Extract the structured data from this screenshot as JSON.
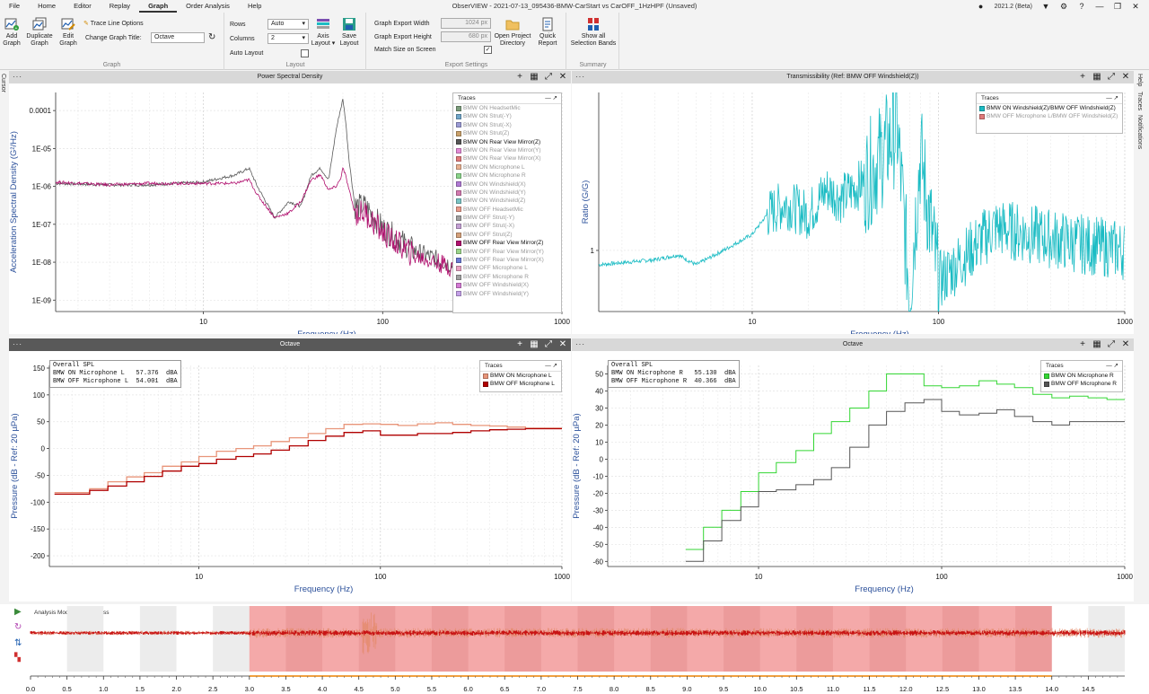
{
  "window": {
    "title": "ObserVIEW - 2021-07-13_095436-BMW-CarStart vs CarOFF_1HzHPF (Unsaved)",
    "version": "2021.2 (Beta)"
  },
  "menu": [
    "File",
    "Home",
    "Editor",
    "Replay",
    "Graph",
    "Order Analysis",
    "Help"
  ],
  "ribbon": {
    "graph_group": {
      "label": "Graph",
      "add_line1": "Add",
      "add_line2": "Graph",
      "dup_line1": "Duplicate",
      "dup_line2": "Graph",
      "edit_line1": "Edit",
      "edit_line2": "Graph",
      "trace_line_options": "Trace Line Options",
      "change_title_label": "Change Graph Title:",
      "change_title_value": "Octave"
    },
    "layout_group": {
      "label": "Layout",
      "rows_label": "Rows",
      "rows_value": "Auto",
      "columns_label": "Columns",
      "columns_value": "2",
      "auto_layout": "Auto Layout",
      "axis_line1": "Axis",
      "axis_line2": "Layout",
      "save_line1": "Save",
      "save_line2": "Layout"
    },
    "export_group": {
      "label": "Export Settings",
      "width_label": "Graph Export Width",
      "width_value": "1024",
      "width_unit": "px",
      "height_label": "Graph Export Height",
      "height_value": "680",
      "height_unit": "px",
      "match_label": "Match Size on Screen",
      "open_line1": "Open Project",
      "open_line2": "Directory",
      "quick_line1": "Quick",
      "quick_line2": "Report"
    },
    "summary_group": {
      "label": "Summary",
      "show_line1": "Show all",
      "show_line2": "Selection Bands"
    }
  },
  "side_labels": {
    "left": "Cursor",
    "right": [
      "Help",
      "Traces",
      "Notifications"
    ]
  },
  "panels": {
    "psd": {
      "title": "Power Spectral Density",
      "ylabel": "Acceleration Spectral Density (G²/Hz)",
      "xlabel": "Frequency (Hz)",
      "yticks": [
        "0.0001",
        "1E-05",
        "1E-06",
        "1E-07",
        "1E-08",
        "1E-09"
      ],
      "xticks": [
        "10",
        "100",
        "1000"
      ],
      "legend_title": "Traces",
      "legend": [
        {
          "label": "BMW ON HeadsetMic",
          "color": "#7c9c7c",
          "active": false
        },
        {
          "label": "BMW ON Strut(-Y)",
          "color": "#6fa5c9",
          "active": false
        },
        {
          "label": "BMW ON Strut(-X)",
          "color": "#9a9ad4",
          "active": false
        },
        {
          "label": "BMW ON Strut(Z)",
          "color": "#c9a06a",
          "active": false
        },
        {
          "label": "BMW ON Rear View Mirror(Z)",
          "color": "#555555",
          "active": true
        },
        {
          "label": "BMW ON Rear View Mirror(Y)",
          "color": "#e38ad6",
          "active": false
        },
        {
          "label": "BMW ON Rear View Mirror(X)",
          "color": "#e07a7a",
          "active": false
        },
        {
          "label": "BMW ON Microphone L",
          "color": "#e8b090",
          "active": false
        },
        {
          "label": "BMW ON Microphone R",
          "color": "#8ad48a",
          "active": false
        },
        {
          "label": "BMW ON Windshield(X)",
          "color": "#b07ad4",
          "active": false
        },
        {
          "label": "BMW ON Windshield(Y)",
          "color": "#d47ab0",
          "active": false
        },
        {
          "label": "BMW ON Windshield(Z)",
          "color": "#7ac4c4",
          "active": false
        },
        {
          "label": "BMW OFF HeadsetMic",
          "color": "#e89a8a",
          "active": false
        },
        {
          "label": "BMW OFF Strut(-Y)",
          "color": "#a0a0a0",
          "active": false
        },
        {
          "label": "BMW OFF Strut(-X)",
          "color": "#c4a0d4",
          "active": false
        },
        {
          "label": "BMW OFF Strut(Z)",
          "color": "#d4a07a",
          "active": false
        },
        {
          "label": "BMW OFF Rear View Mirror(Z)",
          "color": "#b0106e",
          "active": true
        },
        {
          "label": "BMW OFF Rear View Mirror(Y)",
          "color": "#9ad48a",
          "active": false
        },
        {
          "label": "BMW OFF Rear View Mirror(X)",
          "color": "#6a7ad4",
          "active": false
        },
        {
          "label": "BMW OFF Microphone L",
          "color": "#e8a0c0",
          "active": false
        },
        {
          "label": "BMW OFF Microphone R",
          "color": "#a0a0a0",
          "active": false
        },
        {
          "label": "BMW OFF Windshield(X)",
          "color": "#d47ad4",
          "active": false
        },
        {
          "label": "BMW OFF Windshield(Y)",
          "color": "#c4a0e8",
          "active": false
        }
      ]
    },
    "trans": {
      "title": "Transmissibility (Ref: BMW OFF Windshield(Z))",
      "ylabel": "Ratio (G/G)",
      "xlabel": "Frequency (Hz)",
      "yticks": [
        "1"
      ],
      "xticks": [
        "10",
        "100",
        "1000"
      ],
      "legend_title": "Traces",
      "legend": [
        {
          "label": "BMW ON Windshield(Z)/BMW OFF Windshield(Z)",
          "color": "#1cbcc4",
          "active": true
        },
        {
          "label": "BMW OFF Microphone L/BMW OFF Windshield(Z)",
          "color": "#e07a7a",
          "active": false
        }
      ]
    },
    "octL": {
      "title": "Octave",
      "ylabel": "Pressure (dB - Ref: 20 µPa)",
      "xlabel": "Frequency (Hz)",
      "yticks": [
        "150",
        "100",
        "50",
        "0",
        "-50",
        "-100",
        "-150",
        "-200"
      ],
      "xticks": [
        "10",
        "100",
        "1000"
      ],
      "spl_text": "Overall SPL\nBMW ON Microphone L   57.376  dBA\nBMW OFF Microphone L  54.001  dBA",
      "legend_title": "Traces",
      "legend": [
        {
          "label": "BMW ON Microphone L",
          "color": "#e8957a",
          "active": true
        },
        {
          "label": "BMW OFF Microphone L",
          "color": "#b00000",
          "active": true
        }
      ]
    },
    "octR": {
      "title": "Octave",
      "ylabel": "Pressure (dB - Ref: 20 µPa)",
      "xlabel": "Frequency (Hz)",
      "yticks": [
        "50",
        "40",
        "30",
        "20",
        "10",
        "0",
        "-10",
        "-20",
        "-30",
        "-40",
        "-50",
        "-60"
      ],
      "xticks": [
        "10",
        "100",
        "1000"
      ],
      "spl_text": "Overall SPL\nBMW ON Microphone R   55.130  dBA\nBMW OFF Microphone R  40.366  dBA",
      "legend_title": "Traces",
      "legend": [
        {
          "label": "BMW ON Microphone R",
          "color": "#33d633",
          "active": true
        },
        {
          "label": "BMW OFF Microphone R",
          "color": "#555555",
          "active": true
        }
      ]
    }
  },
  "timeline": {
    "mode_label": "Analysis Mode: Post process",
    "ticks": [
      "0.0",
      "0.5",
      "1.0",
      "1.5",
      "2.0",
      "2.5",
      "3.0",
      "3.5",
      "4.0",
      "4.5",
      "5.0",
      "5.5",
      "6.0",
      "6.5",
      "7.0",
      "7.5",
      "8.0",
      "8.5",
      "9.0",
      "9.5",
      "10.0",
      "10.5",
      "11.0",
      "11.5",
      "12.0",
      "12.5",
      "13.0",
      "13.5",
      "14.0",
      "14.5"
    ],
    "selection_start": 3.0,
    "selection_end": 14.0
  },
  "colors": {
    "accent": "#1f5fb0",
    "selection": "#f29a9a",
    "signal": "#c81414"
  },
  "chart_data": [
    {
      "type": "line",
      "title": "Power Spectral Density",
      "xlabel": "Frequency (Hz)",
      "ylabel": "Acceleration Spectral Density (G²/Hz)",
      "xscale": "log",
      "yscale": "log",
      "xlim": [
        1.5,
        1000
      ],
      "ylim": [
        5e-10,
        0.0003
      ],
      "series": [
        {
          "name": "BMW ON Rear View Mirror(Z)",
          "x": [
            1.5,
            3,
            5,
            10,
            15,
            18,
            20,
            25,
            30,
            35,
            40,
            45,
            50,
            55,
            58,
            60,
            62,
            65,
            70,
            80,
            100,
            150,
            200,
            300,
            500,
            1000
          ],
          "y": [
            1.2e-06,
            1.1e-06,
            1.1e-06,
            1.3e-06,
            2e-06,
            3e-06,
            1e-06,
            1.5e-07,
            4e-07,
            3e-07,
            2e-06,
            3e-06,
            1.5e-06,
            3e-05,
            0.0001,
            0.0002,
            6e-05,
            5e-06,
            3e-07,
            3e-07,
            8e-08,
            2e-08,
            1.2e-08,
            6e-09,
            3e-09,
            3e-09
          ]
        },
        {
          "name": "BMW OFF Rear View Mirror(Z)",
          "x": [
            1.5,
            3,
            5,
            10,
            15,
            18,
            20,
            25,
            30,
            35,
            40,
            45,
            50,
            55,
            58,
            60,
            62,
            65,
            70,
            80,
            100,
            150,
            200,
            300,
            500,
            1000
          ],
          "y": [
            1.3e-06,
            1.1e-06,
            1.2e-06,
            1.2e-06,
            1.2e-06,
            1.5e-06,
            6e-07,
            1.5e-07,
            2e-07,
            4e-07,
            1.5e-06,
            2e-06,
            8e-07,
            1e-06,
            1.5e-06,
            3e-06,
            2e-06,
            8e-07,
            2e-07,
            2e-07,
            6e-08,
            1.5e-08,
            1e-08,
            5e-09,
            3e-09,
            3e-09
          ]
        }
      ]
    },
    {
      "type": "line",
      "title": "Transmissibility (Ref: BMW OFF Windshield(Z))",
      "xlabel": "Frequency (Hz)",
      "ylabel": "Ratio (G/G)",
      "xscale": "log",
      "yscale": "log",
      "xlim": [
        1.5,
        1000
      ],
      "ylim": [
        0.5,
        6
      ],
      "series": [
        {
          "name": "BMW ON Windshield(Z)/BMW OFF Windshield(Z)",
          "x": [
            1.5,
            3,
            4,
            5,
            7,
            10,
            12,
            15,
            20,
            25,
            30,
            40,
            50,
            60,
            70,
            80,
            100,
            200,
            500,
            1000
          ],
          "y": [
            0.85,
            0.9,
            0.95,
            0.85,
            1.0,
            1.2,
            1.5,
            1.7,
            1.5,
            2.0,
            1.8,
            2.2,
            3.0,
            4.0,
            0.6,
            3.0,
            0.7,
            1.3,
            1.1,
            1.0
          ]
        }
      ]
    },
    {
      "type": "line",
      "title": "Octave",
      "xlabel": "Frequency (Hz)",
      "ylabel": "Pressure (dB - Ref: 20 µPa)",
      "xscale": "log",
      "xlim": [
        1.5,
        1000
      ],
      "ylim": [
        -220,
        155
      ],
      "series": [
        {
          "name": "BMW ON Microphone L",
          "x": [
            1.6,
            2.5,
            3.15,
            4,
            5,
            6.3,
            8,
            10,
            12.5,
            16,
            20,
            25,
            31.5,
            40,
            50,
            63,
            80,
            100,
            125,
            160,
            200,
            250,
            315,
            400,
            500,
            630,
            800,
            1000
          ],
          "y": [
            -82,
            -75,
            -62,
            -53,
            -45,
            -33,
            -25,
            -15,
            -5,
            0,
            5,
            13,
            20,
            28,
            37,
            45,
            46,
            45,
            43,
            46,
            48,
            45,
            43,
            42,
            40,
            38,
            38,
            38
          ]
        },
        {
          "name": "BMW OFF Microphone L",
          "x": [
            1.6,
            2.5,
            3.15,
            4,
            5,
            6.3,
            8,
            10,
            12.5,
            16,
            20,
            25,
            31.5,
            40,
            50,
            63,
            80,
            100,
            125,
            160,
            200,
            250,
            315,
            400,
            500,
            630,
            800,
            1000
          ],
          "y": [
            -85,
            -78,
            -70,
            -62,
            -52,
            -42,
            -33,
            -28,
            -20,
            -15,
            -10,
            -3,
            5,
            15,
            23,
            30,
            33,
            25,
            25,
            28,
            28,
            30,
            33,
            35,
            36,
            37,
            37,
            38
          ]
        }
      ]
    },
    {
      "type": "line",
      "title": "Octave",
      "xlabel": "Frequency (Hz)",
      "ylabel": "Pressure (dB - Ref: 20 µPa)",
      "xscale": "log",
      "xlim": [
        1.5,
        1000
      ],
      "ylim": [
        -63,
        55
      ],
      "series": [
        {
          "name": "BMW ON Microphone R",
          "x": [
            4,
            5,
            6.3,
            8,
            10,
            12.5,
            16,
            20,
            25,
            31.5,
            40,
            50,
            63,
            80,
            100,
            125,
            160,
            200,
            250,
            315,
            400,
            500,
            630,
            800,
            1000
          ],
          "y": [
            -53,
            -40,
            -30,
            -19,
            -8,
            -2,
            5,
            15,
            22,
            30,
            40,
            50,
            50,
            43,
            42,
            43,
            46,
            44,
            42,
            38,
            36,
            37,
            36,
            35,
            35
          ]
        },
        {
          "name": "BMW OFF Microphone R",
          "x": [
            4,
            5,
            6.3,
            8,
            10,
            12.5,
            16,
            20,
            25,
            31.5,
            40,
            50,
            63,
            80,
            100,
            125,
            160,
            200,
            250,
            315,
            400,
            500,
            630,
            800,
            1000
          ],
          "y": [
            -60,
            -48,
            -36,
            -28,
            -19,
            -18,
            -15,
            -12,
            -5,
            7,
            20,
            28,
            33,
            35,
            28,
            26,
            27,
            29,
            25,
            22,
            20,
            22,
            22,
            22,
            22
          ]
        }
      ]
    }
  ]
}
